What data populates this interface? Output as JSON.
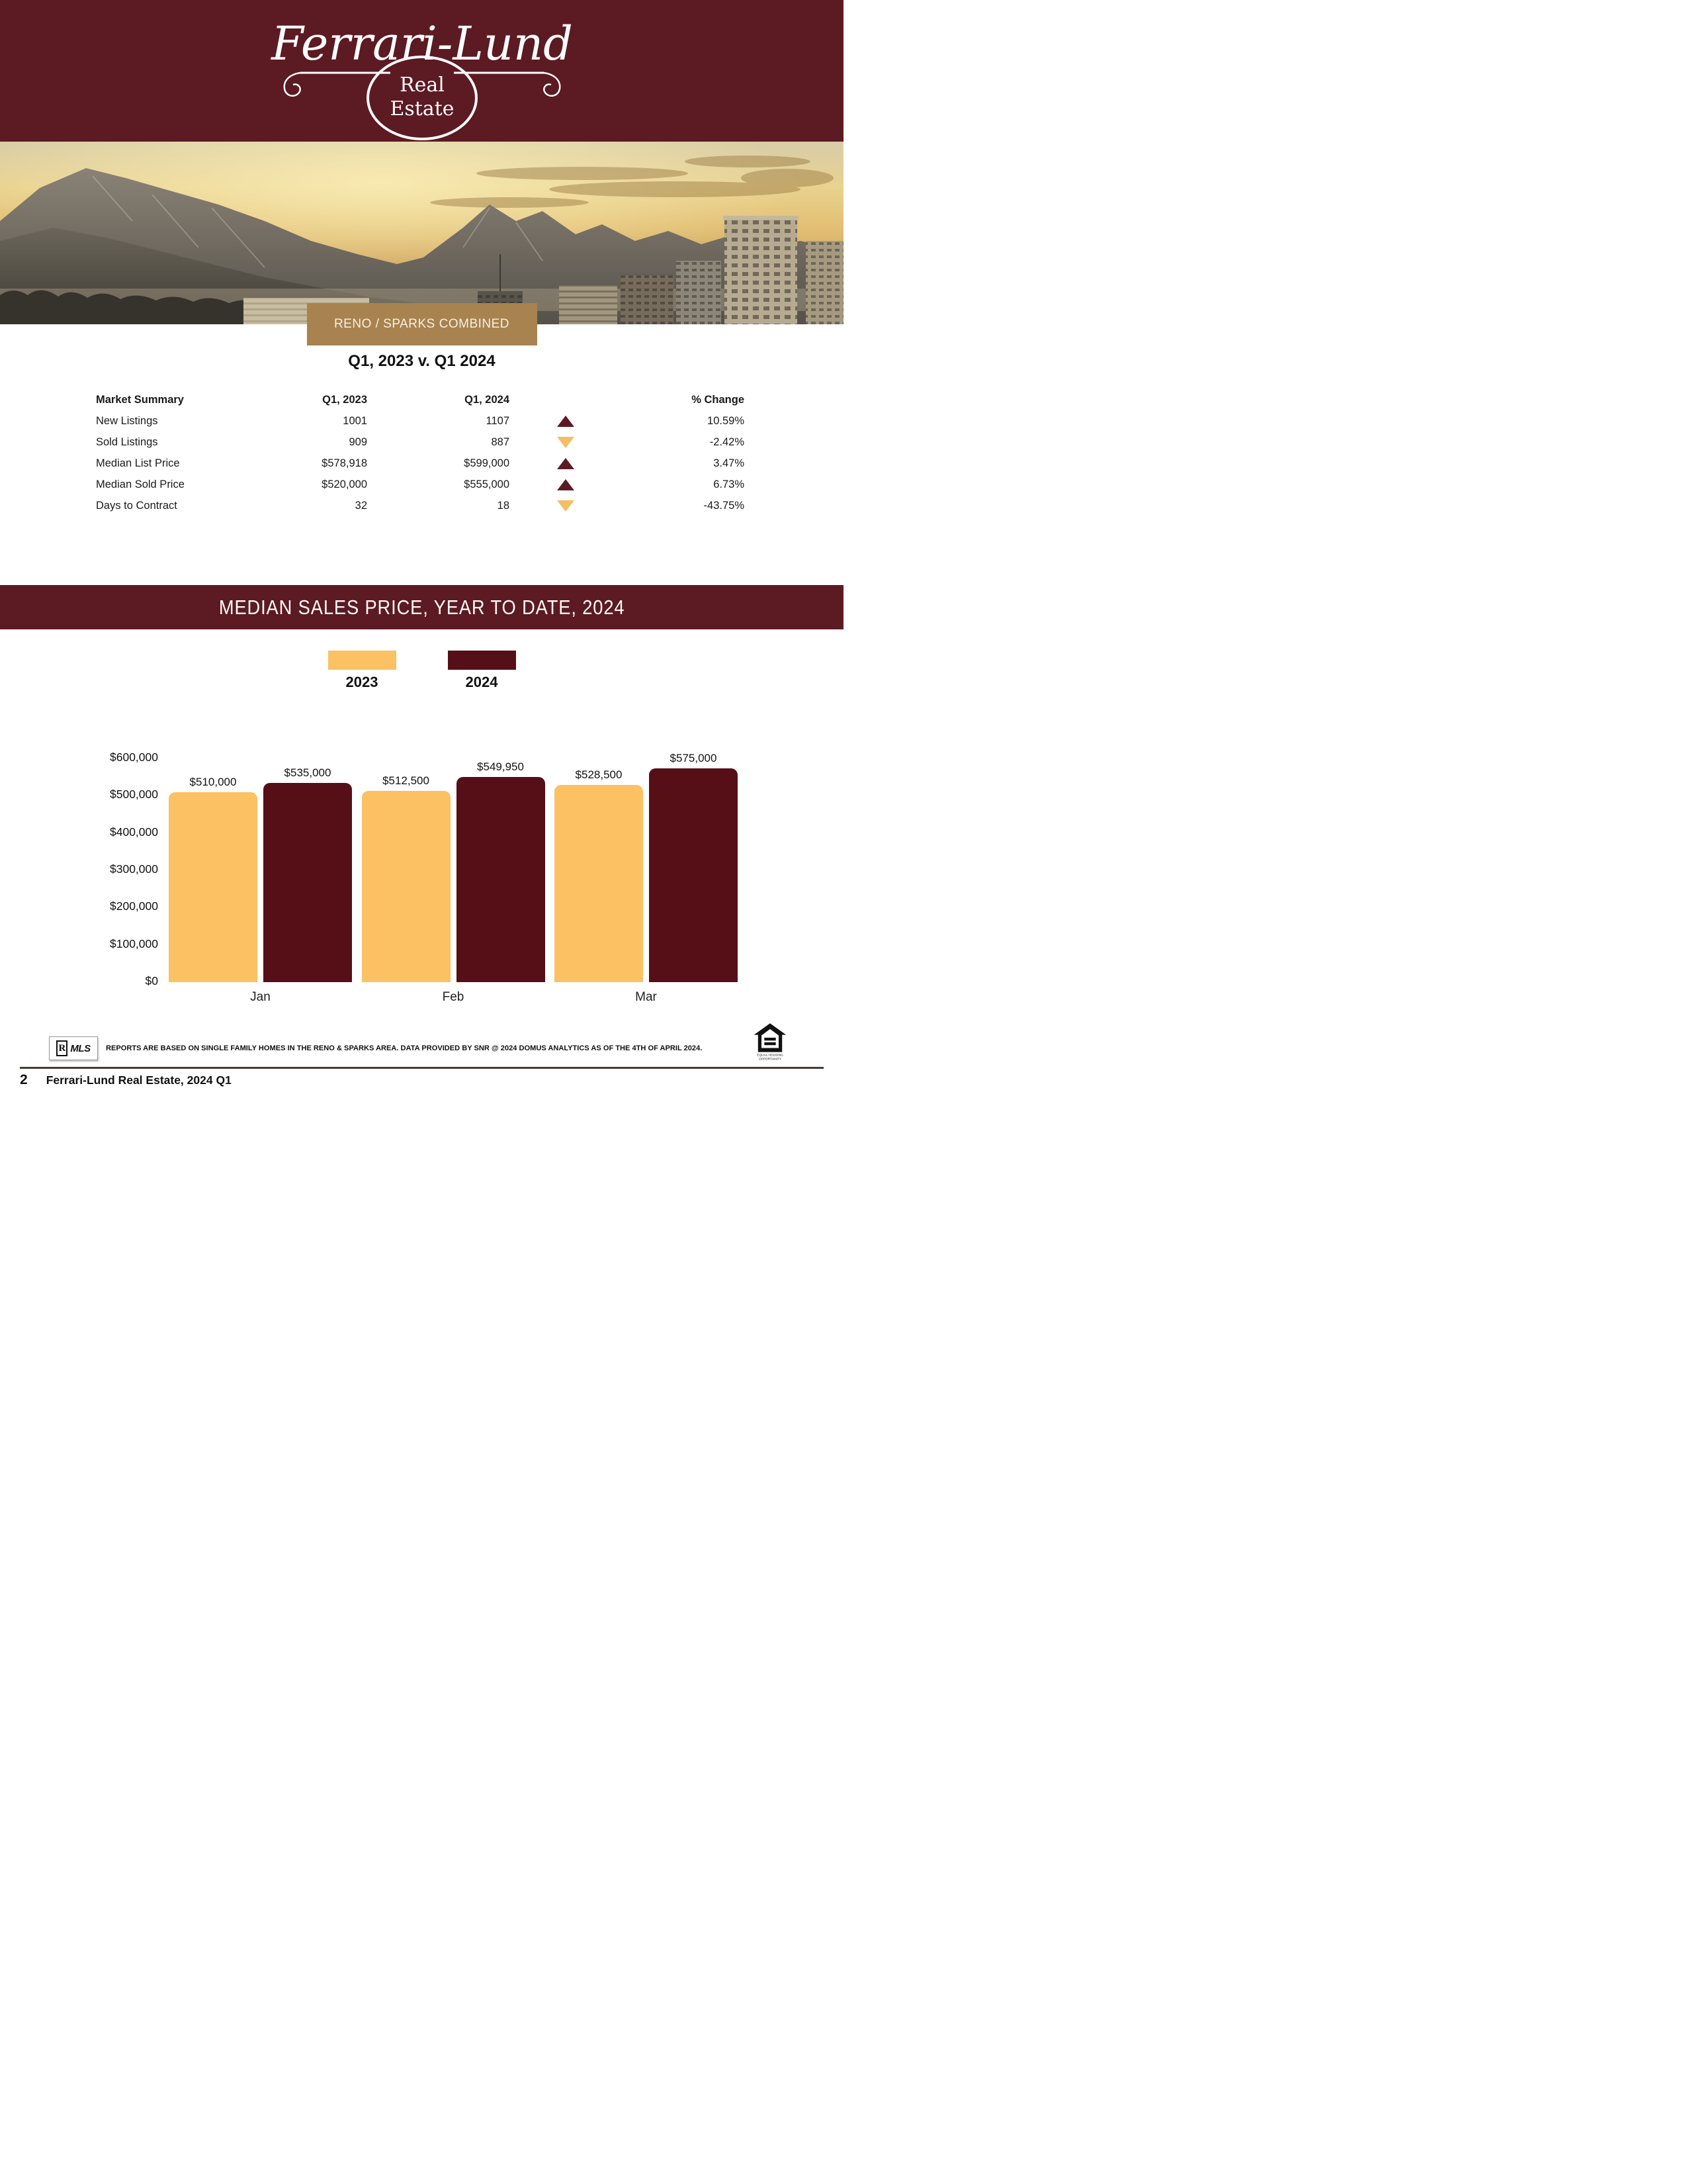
{
  "brand": {
    "name_script": "Ferrari-Lund",
    "oval_line1": "Real",
    "oval_line2": "Estate"
  },
  "colors": {
    "brand_maroon": "#5C1A23",
    "chart_maroon": "#560F17",
    "chart_gold": "#FBC163",
    "banner_tan": "#A8834F"
  },
  "region_banner": {
    "label": "RENO / SPARKS COMBINED"
  },
  "comparison": {
    "title": "Q1, 2023 v. Q1 2024",
    "headers": {
      "label": "Market Summary",
      "q1_2023": "Q1, 2023",
      "q1_2024": "Q1, 2024",
      "change": "% Change"
    },
    "rows": [
      {
        "label": "New Listings",
        "q1_2023": "1001",
        "q1_2024": "1107",
        "direction": "up",
        "change": "10.59%"
      },
      {
        "label": "Sold Listings",
        "q1_2023": "909",
        "q1_2024": "887",
        "direction": "down",
        "change": "-2.42%"
      },
      {
        "label": "Median List Price",
        "q1_2023": "$578,918",
        "q1_2024": "$599,000",
        "direction": "up",
        "change": "3.47%"
      },
      {
        "label": "Median Sold Price",
        "q1_2023": "$520,000",
        "q1_2024": "$555,000",
        "direction": "up",
        "change": "6.73%"
      },
      {
        "label": "Days to Contract",
        "q1_2023": "32",
        "q1_2024": "18",
        "direction": "down",
        "change": "-43.75%"
      }
    ]
  },
  "chart_section": {
    "banner_title": "MEDIAN SALES PRICE, YEAR TO DATE, 2024"
  },
  "chart_data": {
    "type": "bar",
    "title": "MEDIAN SALES PRICE, YEAR TO DATE, 2024",
    "categories": [
      "Jan",
      "Feb",
      "Mar"
    ],
    "series": [
      {
        "name": "2023",
        "color": "#FBC163",
        "values": [
          510000,
          512500,
          528500
        ],
        "labels": [
          "$510,000",
          "$512,500",
          "$528,500"
        ]
      },
      {
        "name": "2024",
        "color": "#560F17",
        "values": [
          535000,
          549950,
          575000
        ],
        "labels": [
          "$535,000",
          "$549,950",
          "$575,000"
        ]
      }
    ],
    "xlabel": "",
    "ylabel": "",
    "ylim": [
      0,
      600000
    ],
    "yticks": [
      {
        "value": 0,
        "label": "$0"
      },
      {
        "value": 100000,
        "label": "$100,000"
      },
      {
        "value": 200000,
        "label": "$200,000"
      },
      {
        "value": 300000,
        "label": "$300,000"
      },
      {
        "value": 400000,
        "label": "$400,000"
      },
      {
        "value": 500000,
        "label": "$500,000"
      },
      {
        "value": 600000,
        "label": "$600,000"
      }
    ],
    "grid": false,
    "legend_position": "top-center"
  },
  "footer": {
    "mls_label": "MLS",
    "mls_r_glyph": "R",
    "eho_label": "EQUAL HOUSING OPPORTUNITY",
    "disclaimer": "REPORTS ARE BASED ON SINGLE FAMILY HOMES IN THE RENO & SPARKS AREA. DATA PROVIDED BY SNR @ 2024 DOMUS ANALYTICS AS OF THE 4TH OF APRIL 2024.",
    "page_number": "2",
    "page_title": "Ferrari-Lund Real Estate, 2024 Q1"
  }
}
